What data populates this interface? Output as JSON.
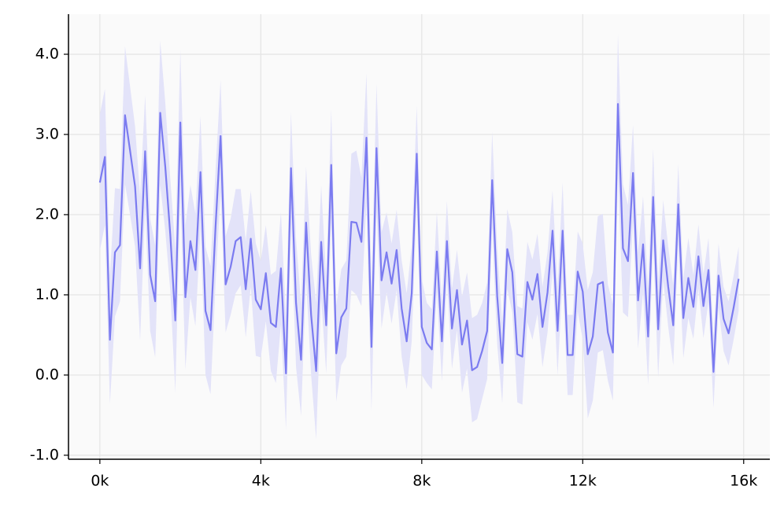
{
  "chart_data": {
    "type": "line",
    "x": [
      0,
      125,
      250,
      375,
      500,
      625,
      750,
      875,
      1000,
      1125,
      1250,
      1375,
      1500,
      1625,
      1750,
      1875,
      2000,
      2125,
      2250,
      2375,
      2500,
      2625,
      2750,
      2875,
      3000,
      3125,
      3250,
      3375,
      3500,
      3625,
      3750,
      3875,
      4000,
      4125,
      4250,
      4375,
      4500,
      4625,
      4750,
      4875,
      5000,
      5125,
      5250,
      5375,
      5500,
      5625,
      5750,
      5875,
      6000,
      6125,
      6250,
      6375,
      6500,
      6625,
      6750,
      6875,
      7000,
      7125,
      7250,
      7375,
      7500,
      7625,
      7750,
      7875,
      8000,
      8125,
      8250,
      8375,
      8500,
      8625,
      8750,
      8875,
      9000,
      9125,
      9250,
      9375,
      9500,
      9625,
      9750,
      9875,
      10000,
      10125,
      10250,
      10375,
      10500,
      10625,
      10750,
      10875,
      11000,
      11125,
      11250,
      11375,
      11500,
      11625,
      11750,
      11875,
      12000,
      12125,
      12250,
      12375,
      12500,
      12625,
      12750,
      12875,
      13000,
      13125,
      13250,
      13375,
      13500,
      13625,
      13750,
      13875,
      14000,
      14125,
      14250,
      14375,
      14500,
      14625,
      14750,
      14875,
      15000,
      15125,
      15250,
      15375,
      15500,
      15625,
      15750,
      15875
    ],
    "series": [
      {
        "color": "#7b7bf0",
        "band_color": "#e3e3f9",
        "values": [
          2.4,
          2.72,
          0.44,
          1.53,
          1.62,
          3.24,
          2.8,
          2.35,
          1.33,
          2.79,
          1.25,
          0.92,
          3.27,
          2.6,
          1.75,
          0.68,
          3.15,
          0.97,
          1.67,
          1.31,
          2.53,
          0.8,
          0.56,
          1.85,
          2.98,
          1.13,
          1.35,
          1.67,
          1.72,
          1.07,
          1.7,
          0.94,
          0.82,
          1.27,
          0.65,
          0.6,
          1.33,
          0.02,
          2.58,
          0.9,
          0.19,
          1.9,
          0.75,
          0.05,
          1.66,
          0.62,
          2.62,
          0.27,
          0.72,
          0.83,
          1.91,
          1.9,
          1.66,
          2.96,
          0.35,
          2.83,
          1.18,
          1.53,
          1.14,
          1.56,
          0.83,
          0.42,
          1.02,
          2.76,
          0.6,
          0.4,
          0.32,
          1.54,
          0.42,
          1.67,
          0.58,
          1.06,
          0.38,
          0.68,
          0.06,
          0.1,
          0.3,
          0.55,
          2.43,
          0.98,
          0.15,
          1.57,
          1.28,
          0.26,
          0.23,
          1.16,
          0.94,
          1.26,
          0.6,
          1.03,
          1.8,
          0.55,
          1.8,
          0.25,
          0.25,
          1.29,
          1.04,
          0.26,
          0.48,
          1.13,
          1.16,
          0.53,
          0.28,
          3.38,
          1.58,
          1.42,
          2.52,
          0.93,
          1.63,
          0.48,
          2.22,
          0.57,
          1.68,
          1.1,
          0.62,
          2.13,
          0.71,
          1.21,
          0.85,
          1.48,
          0.86,
          1.31,
          0.04,
          1.24,
          0.7,
          0.52,
          0.84,
          1.2
        ],
        "errors": [
          0.85,
          0.85,
          0.8,
          0.8,
          0.7,
          0.86,
          0.8,
          0.75,
          0.9,
          0.7,
          0.7,
          0.7,
          0.9,
          0.8,
          0.7,
          0.9,
          0.9,
          0.9,
          0.7,
          0.7,
          0.7,
          0.8,
          0.8,
          0.7,
          0.7,
          0.6,
          0.6,
          0.65,
          0.6,
          0.6,
          0.6,
          0.7,
          0.6,
          0.6,
          0.6,
          0.7,
          0.7,
          0.7,
          0.7,
          0.8,
          0.7,
          0.7,
          0.75,
          0.85,
          0.7,
          0.6,
          0.7,
          0.6,
          0.6,
          0.6,
          0.85,
          0.9,
          0.8,
          0.8,
          0.8,
          0.8,
          0.6,
          0.5,
          0.5,
          0.5,
          0.6,
          0.6,
          0.6,
          0.6,
          0.6,
          0.5,
          0.5,
          0.5,
          0.5,
          0.5,
          0.5,
          0.5,
          0.6,
          0.6,
          0.65,
          0.65,
          0.6,
          0.6,
          0.6,
          0.6,
          0.5,
          0.5,
          0.5,
          0.6,
          0.6,
          0.5,
          0.5,
          0.5,
          0.5,
          0.5,
          0.5,
          0.55,
          0.6,
          0.5,
          0.5,
          0.5,
          0.6,
          0.8,
          0.8,
          0.85,
          0.85,
          0.6,
          0.6,
          0.87,
          0.8,
          0.7,
          0.6,
          0.6,
          0.6,
          0.6,
          0.6,
          0.6,
          0.5,
          0.5,
          0.5,
          0.5,
          0.5,
          0.5,
          0.4,
          0.4,
          0.4,
          0.4,
          0.45,
          0.4,
          0.4,
          0.4,
          0.4,
          0.4
        ]
      }
    ],
    "xlim": [
      -780,
      16650
    ],
    "ylim": [
      -1.05,
      4.5
    ],
    "xticks": [
      {
        "value": 0,
        "label": "0k"
      },
      {
        "value": 4000,
        "label": "4k"
      },
      {
        "value": 8000,
        "label": "8k"
      },
      {
        "value": 12000,
        "label": "12k"
      },
      {
        "value": 16000,
        "label": "16k"
      }
    ],
    "yticks": [
      {
        "value": -1,
        "label": "-1.0"
      },
      {
        "value": 0,
        "label": "0.0"
      },
      {
        "value": 1,
        "label": "1.0"
      },
      {
        "value": 2,
        "label": "2.0"
      },
      {
        "value": 3,
        "label": "3.0"
      },
      {
        "value": 4,
        "label": "4.0"
      }
    ],
    "grid": true
  }
}
